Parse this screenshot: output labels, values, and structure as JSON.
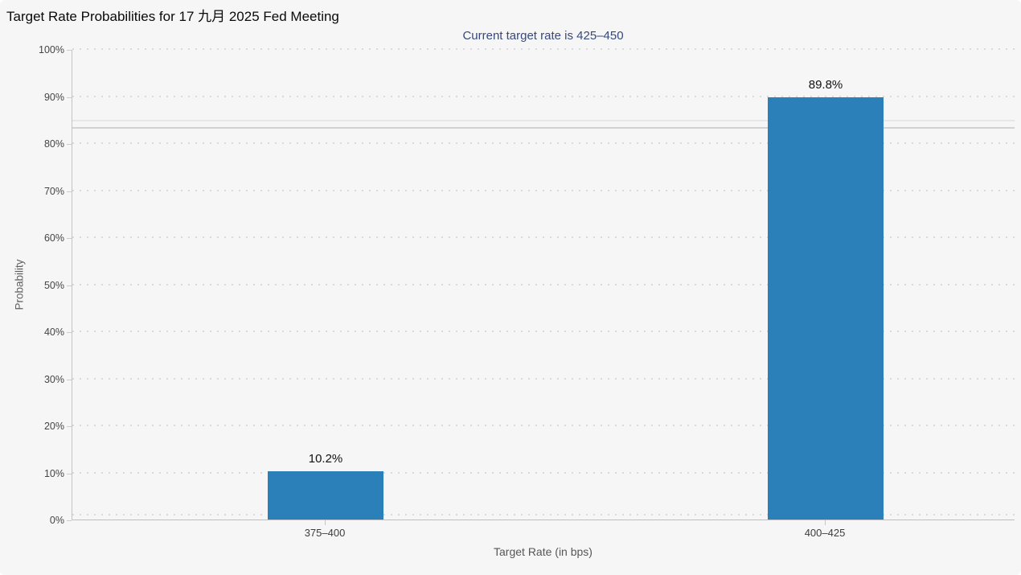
{
  "page": {
    "background_color": "#f6f6f7"
  },
  "chart_data": {
    "type": "bar",
    "title": "Target Rate Probabilities for 17 九月 2025 Fed Meeting",
    "subtitle": "Current target rate is 425–450",
    "xlabel": "Target Rate (in bps)",
    "ylabel": "Probability",
    "categories": [
      "375–400",
      "400–425"
    ],
    "series": [
      {
        "name": "Probability",
        "values": [
          10.2,
          89.8
        ]
      }
    ],
    "bar_value_labels": [
      "10.2%",
      "89.8%"
    ],
    "ylim": [
      0,
      100
    ],
    "yticks": [
      {
        "value": 0,
        "label": "0%"
      },
      {
        "value": 10,
        "label": "10%"
      },
      {
        "value": 20,
        "label": "20%"
      },
      {
        "value": 30,
        "label": "30%"
      },
      {
        "value": 40,
        "label": "40%"
      },
      {
        "value": 50,
        "label": "50%"
      },
      {
        "value": 60,
        "label": "60%"
      },
      {
        "value": 70,
        "label": "70%"
      },
      {
        "value": 80,
        "label": "80%"
      },
      {
        "value": 90,
        "label": "90%"
      },
      {
        "value": 100,
        "label": "100%"
      }
    ],
    "grid": {
      "orientation": "horizontal",
      "style": "dotted"
    },
    "legend": "none",
    "reference_lines_pct": [
      84.8,
      83.2
    ],
    "colors": {
      "bar": "#2b80b9",
      "subtitle_text": "#36497c",
      "title_text": "#0a0a0a",
      "axis_label_text": "#454545",
      "axis_title_text": "#5f5f5f",
      "gridline": "#d9d9db",
      "background": "#f6f6f7"
    }
  }
}
